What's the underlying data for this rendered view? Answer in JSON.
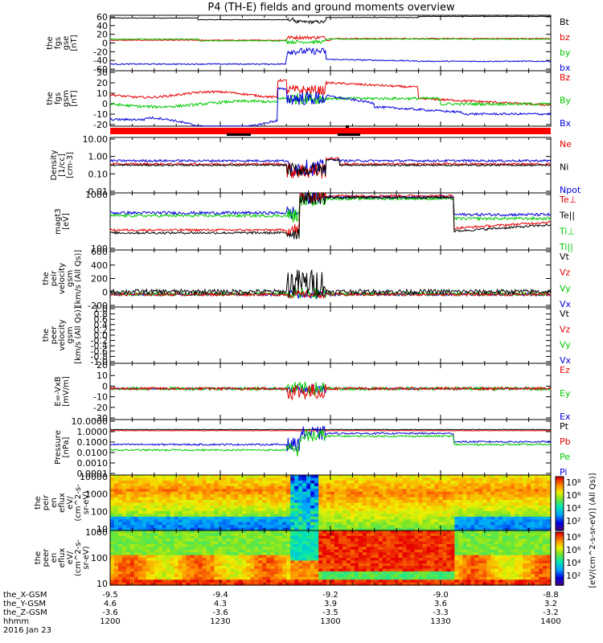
{
  "title": "P4 (TH-E) fields and ground moments overview",
  "colors": {
    "black": "#000000",
    "red": "#e60000",
    "green": "#00c800",
    "blue": "#0000d8"
  },
  "panels": [
    {
      "id": "fgs-gse",
      "ylabel_lines": [
        "the",
        "fgs",
        "gse",
        "[nT]"
      ],
      "yticks": [
        "60",
        "40",
        "20",
        "0",
        "-20",
        "-40",
        "-60"
      ],
      "legend": [
        {
          "text": "Bt",
          "color": "black"
        },
        {
          "text": "bz",
          "color": "red"
        },
        {
          "text": "by",
          "color": "green"
        },
        {
          "text": "bx",
          "color": "blue"
        }
      ]
    },
    {
      "id": "fgs-gsm",
      "ylabel_lines": [
        "the",
        "fgs",
        "gsm",
        "[nT]"
      ],
      "yticks": [
        "30",
        "20",
        "10",
        "0",
        "-10",
        "-20"
      ],
      "legend": [
        {
          "text": "Bz",
          "color": "red"
        },
        {
          "text": "By",
          "color": "green"
        },
        {
          "text": "Bx",
          "color": "blue"
        }
      ]
    },
    {
      "id": "density",
      "ylabel_lines": [
        "Density",
        "[1/cc]",
        "[cm-3]"
      ],
      "yticks": [
        "10.00",
        "1.00",
        "0.10",
        "0.01"
      ],
      "legend": [
        {
          "text": "Ne",
          "color": "red"
        },
        {
          "text": "Ni",
          "color": "black"
        },
        {
          "text": "Npot",
          "color": "blue"
        }
      ]
    },
    {
      "id": "temperature",
      "ylabel_lines": [
        "magt3",
        "[eV]"
      ],
      "yticks": [
        "1000",
        "100"
      ],
      "legend": [
        {
          "text": "Te⊥",
          "color": "red"
        },
        {
          "text": "Te||",
          "color": "black"
        },
        {
          "text": "Ti⊥",
          "color": "green"
        },
        {
          "text": "Ti||",
          "color": "green"
        }
      ]
    },
    {
      "id": "peir-velocity",
      "ylabel_lines": [
        "the",
        "peir",
        "velocity",
        "gsm",
        "[km/s (All Qs)]"
      ],
      "yticks": [
        "600",
        "400",
        "200",
        "0",
        "-200"
      ],
      "legend": [
        {
          "text": "Vt",
          "color": "black"
        },
        {
          "text": "Vz",
          "color": "red"
        },
        {
          "text": "Vy",
          "color": "green"
        },
        {
          "text": "Vx",
          "color": "blue"
        }
      ]
    },
    {
      "id": "peer-velocity",
      "ylabel_lines": [
        "the",
        "peer",
        "velocity",
        "gsm",
        "[km/s (All Qs)]"
      ],
      "yticks": [
        "1.0",
        "0.8",
        "0.6",
        "0.4",
        "0.2",
        "0.0",
        "-0.2",
        "-0.4",
        "-0.6",
        "-0.8",
        "-1.0"
      ],
      "legend": [
        {
          "text": "Vt",
          "color": "black"
        },
        {
          "text": "Vz",
          "color": "red"
        },
        {
          "text": "Vy",
          "color": "green"
        },
        {
          "text": "Vx",
          "color": "blue"
        }
      ]
    },
    {
      "id": "efield",
      "ylabel_lines": [
        "E=-VxB",
        "[mV/m]"
      ],
      "yticks": [
        "20",
        "10",
        "0",
        "-10",
        "-20",
        "-30"
      ],
      "legend": [
        {
          "text": "Ez",
          "color": "red"
        },
        {
          "text": "Ey",
          "color": "green"
        },
        {
          "text": "Ex",
          "color": "blue"
        }
      ]
    },
    {
      "id": "pressure",
      "ylabel_lines": [
        "Pressure",
        "[nPa]"
      ],
      "yticks": [
        "10.0000",
        "1.0000",
        "0.1000",
        "0.0100",
        "0.0010",
        "0.0001"
      ],
      "legend": [
        {
          "text": "Pt",
          "color": "black"
        },
        {
          "text": "Pb",
          "color": "red"
        },
        {
          "text": "Pe",
          "color": "green"
        },
        {
          "text": "Pi",
          "color": "blue"
        }
      ]
    },
    {
      "id": "peir-eflux",
      "ylabel_lines": [
        "the",
        "peir",
        "en",
        "eflux",
        "eV/",
        "(cm^2-s-",
        "sr-eV)"
      ],
      "yticks": [
        "10000",
        "1000",
        "100",
        "10"
      ]
    },
    {
      "id": "peer-eflux",
      "ylabel_lines": [
        "the",
        "peer",
        "en",
        "eflux",
        "eV/",
        "(cm^2-s-",
        "sr-eV)"
      ],
      "yticks": [
        "1000",
        "100",
        "10"
      ]
    }
  ],
  "colorbar": {
    "label": "[eV/(cm^2-s-sr-eV)] (All Qs)]",
    "ticks_top": [
      "10⁸",
      "10⁶",
      "10⁴",
      "10²"
    ],
    "ticks_bottom": [
      "10⁸",
      "10⁶",
      "10⁴",
      "10²"
    ]
  },
  "xaxis": {
    "rows": [
      {
        "label": "the_X-GSM",
        "values": [
          "-9.5",
          "-9.4",
          "-9.2",
          "-9.0",
          "-8.8"
        ]
      },
      {
        "label": "the_Y-GSM",
        "values": [
          "4.6",
          "4.3",
          "3.9",
          "3.6",
          "3.2"
        ]
      },
      {
        "label": "the_Z-GSM",
        "values": [
          "-3.6",
          "-3.6",
          "-3.5",
          "-3.3",
          "-3.2"
        ]
      },
      {
        "label": "hhmm",
        "values": [
          "1200",
          "1230",
          "1300",
          "1330",
          "1400"
        ]
      }
    ],
    "date": "2016 Jan 23"
  },
  "chart_data": {
    "type": "line",
    "x": [
      "1200",
      "1230",
      "1300",
      "1330",
      "1400"
    ],
    "xlabel": "hhmm",
    "series": [
      {
        "name": "Bt",
        "values": [
          50,
          50,
          58,
          55,
          58
        ]
      },
      {
        "name": "bz",
        "values": [
          8,
          5,
          12,
          10,
          10
        ]
      },
      {
        "name": "by",
        "values": [
          10,
          5,
          2,
          8,
          5
        ]
      },
      {
        "name": "bx",
        "values": [
          -48,
          -50,
          -25,
          -40,
          -45
        ]
      },
      {
        "name": "Ne",
        "values": [
          0.5,
          0.4,
          3.0,
          0.45,
          0.3
        ]
      },
      {
        "name": "Te⊥",
        "values": [
          200,
          250,
          4000,
          200,
          500
        ]
      },
      {
        "name": "Ti||",
        "values": [
          1200,
          1500,
          4000,
          1500,
          2000
        ]
      },
      {
        "name": "Pt",
        "values": [
          1.0,
          1.0,
          0.9,
          1.0,
          1.0
        ]
      }
    ]
  }
}
